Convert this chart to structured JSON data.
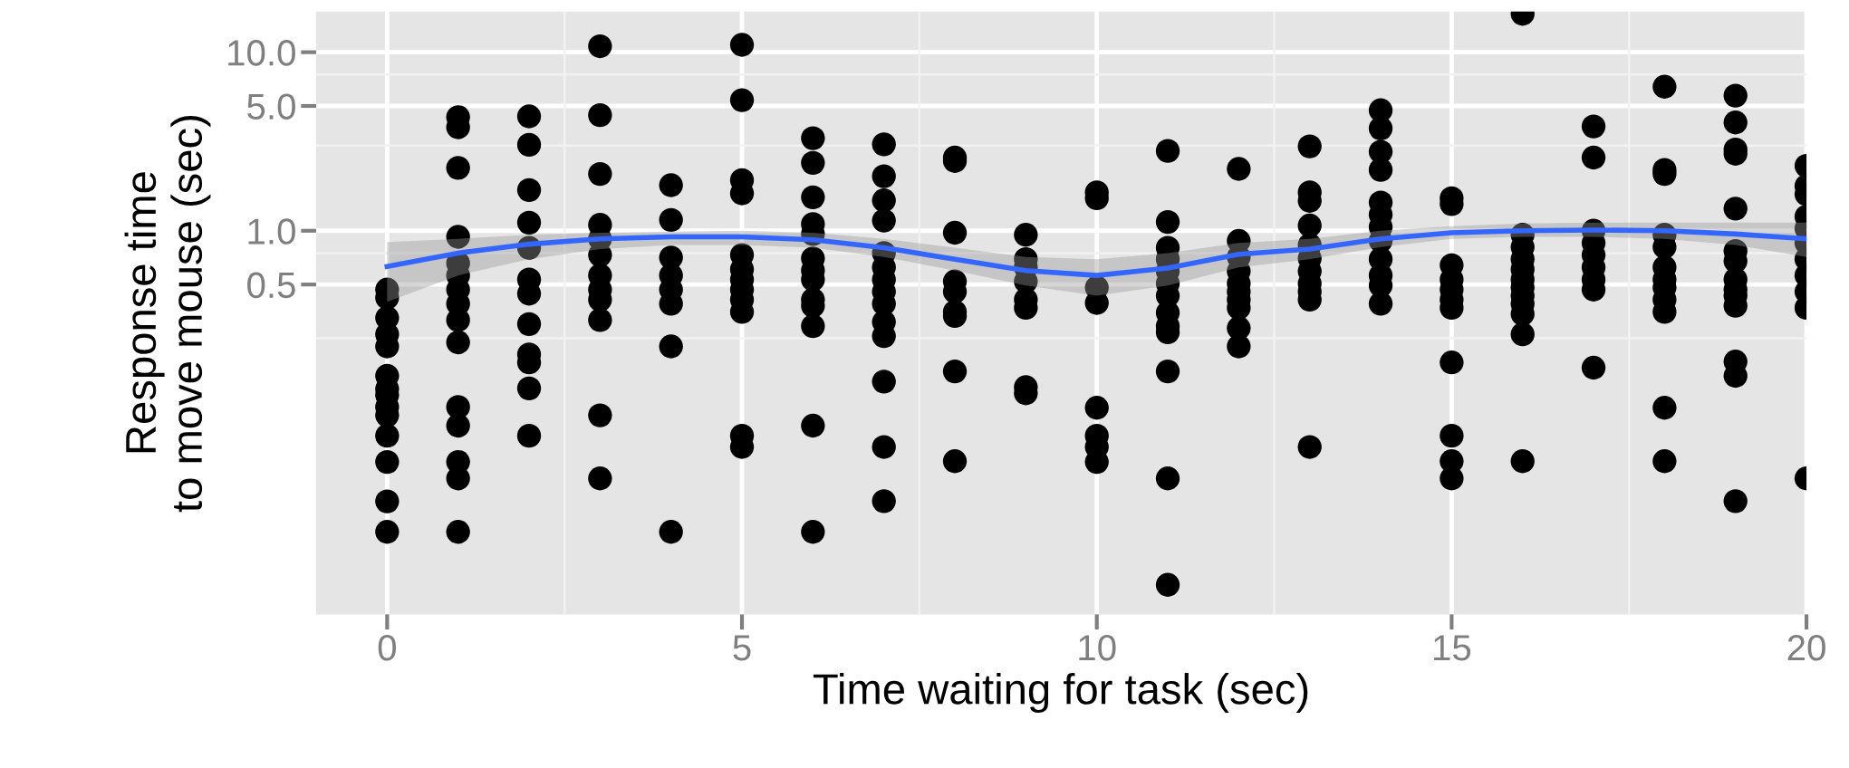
{
  "chart_data": {
    "type": "scatter",
    "xlabel": "Time waiting for task (sec)",
    "ylabel": "Response time\nto move mouse (sec)",
    "log": "y",
    "grid": true,
    "marker": "circle",
    "xlim": [
      -1,
      20
    ],
    "ylim": [
      0.0071,
      16.9
    ],
    "xticks": [
      0,
      5,
      10,
      15,
      20
    ],
    "yticks": [
      {
        "value": 0.5,
        "label": "0.5"
      },
      {
        "value": 1,
        "label": "1.0"
      },
      {
        "value": 5,
        "label": "5.0"
      },
      {
        "value": 10,
        "label": "10.0"
      }
    ],
    "series": [
      {
        "color": "#000000",
        "x": [
          0,
          0,
          0,
          0,
          0,
          0,
          0,
          0,
          0,
          0,
          0,
          0,
          0,
          0,
          1,
          1,
          1,
          1,
          1,
          1,
          1,
          1,
          1,
          1,
          1,
          1,
          1,
          1,
          1,
          2,
          2,
          2,
          2,
          2,
          2,
          2,
          2,
          2,
          2,
          2,
          2,
          3,
          3,
          3,
          3,
          3,
          3,
          3,
          3,
          3,
          3,
          3,
          3,
          4,
          4,
          4,
          4,
          4,
          4,
          4,
          4,
          5,
          5,
          5,
          5,
          5,
          5,
          5,
          5,
          5,
          5,
          5,
          5,
          6,
          6,
          6,
          6,
          6,
          6,
          6,
          6,
          6,
          6,
          6,
          6,
          6,
          7,
          7,
          7,
          7,
          7,
          7,
          7,
          7,
          7,
          7,
          7,
          7,
          7,
          7,
          8,
          8,
          8,
          8,
          8,
          8,
          8,
          8,
          8,
          9,
          9,
          9,
          9,
          9,
          9,
          9,
          9,
          10,
          10,
          10,
          10,
          10,
          10,
          10,
          10,
          11,
          11,
          11,
          11,
          11,
          11,
          11,
          11,
          11,
          11,
          11,
          11,
          11,
          12,
          12,
          12,
          12,
          12,
          12,
          12,
          12,
          12,
          12,
          13,
          13,
          13,
          13,
          13,
          13,
          13,
          13,
          13,
          13,
          13,
          14,
          14,
          14,
          14,
          14,
          14,
          14,
          14,
          14,
          14,
          14,
          14,
          15,
          15,
          15,
          15,
          15,
          15,
          15,
          15,
          15,
          15,
          15,
          16,
          16,
          16,
          16,
          16,
          16,
          16,
          16,
          16,
          16,
          16,
          16,
          17,
          17,
          17,
          17,
          17,
          17,
          17,
          17,
          17,
          18,
          18,
          18,
          18,
          18,
          18,
          18,
          18,
          18,
          18,
          18,
          18,
          19,
          19,
          19,
          19,
          19,
          19,
          19,
          19,
          19,
          19,
          19,
          19,
          19,
          19,
          20,
          20,
          20,
          20,
          20,
          20,
          20,
          20,
          20,
          20,
          20
        ],
        "values": [
          0.468,
          0.422,
          0.325,
          0.263,
          0.225,
          0.154,
          0.13,
          0.12,
          0.103,
          0.0925,
          0.0711,
          0.0507,
          0.0305,
          0.0206,
          4.33,
          3.8,
          2.25,
          0.925,
          0.658,
          0.562,
          0.468,
          0.39,
          0.316,
          0.237,
          0.103,
          0.081,
          0.0507,
          0.041,
          0.0206,
          4.37,
          3.03,
          1.69,
          1.11,
          0.803,
          0.533,
          0.444,
          0.3,
          0.203,
          0.183,
          0.131,
          0.0711,
          10.8,
          4.44,
          2.08,
          1.08,
          0.901,
          0.731,
          0.562,
          0.468,
          0.411,
          0.316,
          0.0925,
          0.041,
          1.8,
          1.15,
          0.708,
          0.562,
          0.468,
          0.39,
          0.225,
          0.0206,
          11.0,
          5.39,
          1.92,
          1.62,
          0.731,
          0.608,
          0.533,
          0.468,
          0.411,
          0.351,
          0.0711,
          0.0615,
          3.3,
          2.4,
          1.54,
          1.09,
          0.959,
          0.7,
          0.599,
          0.533,
          0.411,
          0.38,
          0.292,
          0.081,
          0.0206,
          3.05,
          2.02,
          1.48,
          1.14,
          0.75,
          0.624,
          0.533,
          0.456,
          0.39,
          0.308,
          0.257,
          0.143,
          0.0615,
          0.0306,
          2.57,
          2.46,
          0.974,
          0.52,
          0.456,
          0.351,
          0.333,
          0.163,
          0.0512,
          0.949,
          0.693,
          0.624,
          0.52,
          0.411,
          0.37,
          0.133,
          0.123,
          1.64,
          1.52,
          0.481,
          0.394,
          0.102,
          0.0711,
          0.0615,
          0.0507,
          2.8,
          1.12,
          0.803,
          0.693,
          0.593,
          0.507,
          0.433,
          0.347,
          0.292,
          0.27,
          0.163,
          0.041,
          0.0104,
          2.22,
          0.877,
          0.712,
          0.593,
          0.507,
          0.456,
          0.411,
          0.37,
          0.285,
          0.225,
          2.97,
          1.64,
          1.47,
          1.07,
          0.832,
          0.7,
          0.593,
          0.507,
          0.456,
          0.411,
          0.0615,
          4.73,
          3.74,
          2.77,
          2.19,
          1.44,
          1.23,
          1.05,
          0.877,
          0.693,
          0.562,
          0.493,
          0.39,
          1.52,
          1.41,
          0.641,
          0.533,
          0.468,
          0.411,
          0.37,
          0.183,
          0.0711,
          0.0512,
          0.041,
          16.4,
          0.949,
          0.811,
          0.693,
          0.608,
          0.533,
          0.481,
          0.433,
          0.39,
          0.342,
          0.263,
          0.0512,
          3.84,
          2.57,
          1.0,
          0.855,
          0.731,
          0.624,
          0.533,
          0.468,
          0.171,
          6.41,
          2.19,
          2.08,
          0.949,
          0.811,
          0.624,
          0.533,
          0.481,
          0.411,
          0.351,
          0.102,
          0.0512,
          5.71,
          4.04,
          2.85,
          2.7,
          1.33,
          0.77,
          0.676,
          0.533,
          0.468,
          0.433,
          0.38,
          0.185,
          0.154,
          0.0306,
          2.31,
          1.78,
          1.6,
          1.2,
          1.03,
          0.855,
          0.693,
          0.562,
          0.456,
          0.37,
          0.041
        ]
      },
      {
        "type": "line",
        "marker": "none",
        "color": "#3366ff",
        "x": [
          0,
          1,
          2,
          3,
          4,
          5,
          6,
          7,
          8,
          9,
          10,
          11,
          12,
          13,
          14,
          15,
          16,
          17,
          18,
          19,
          20
        ],
        "values": [
          0.631,
          0.75,
          0.841,
          0.901,
          0.925,
          0.925,
          0.891,
          0.803,
          0.693,
          0.599,
          0.562,
          0.618,
          0.738,
          0.79,
          0.901,
          0.974,
          1.0,
          1.01,
          1.0,
          0.959,
          0.901
        ],
        "lower": [
          0.4,
          0.562,
          0.693,
          0.79,
          0.833,
          0.833,
          0.803,
          0.712,
          0.599,
          0.493,
          0.433,
          0.493,
          0.624,
          0.693,
          0.811,
          0.901,
          0.925,
          0.925,
          0.901,
          0.833,
          0.712
        ],
        "upper": [
          0.864,
          0.901,
          0.949,
          0.974,
          0.99,
          1.0,
          0.974,
          0.901,
          0.803,
          0.712,
          0.693,
          0.75,
          0.855,
          0.901,
          1.0,
          1.06,
          1.1,
          1.11,
          1.11,
          1.11,
          1.11
        ]
      }
    ]
  }
}
